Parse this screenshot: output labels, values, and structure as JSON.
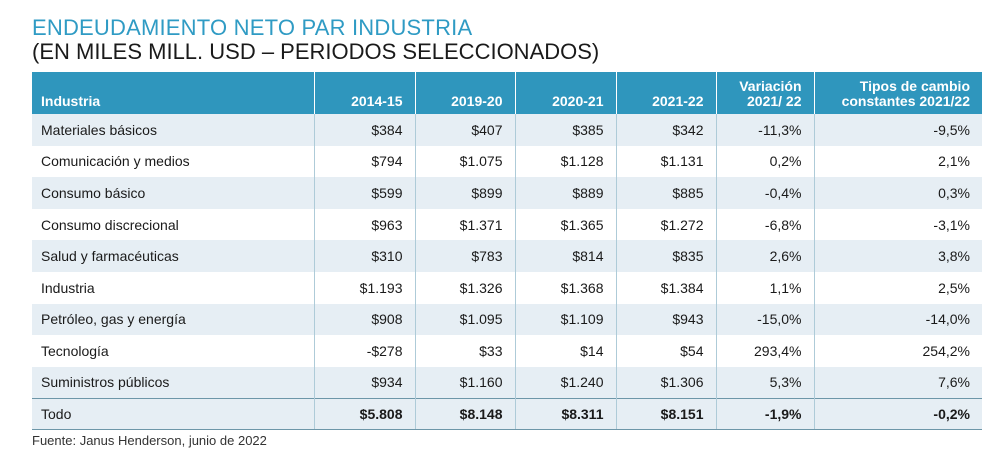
{
  "title": "ENDEUDAMIENTO NETO PAR INDUSTRIA",
  "subtitle": "(EN MILES MILL. USD – PERIODOS SELECCIONADOS)",
  "colors": {
    "title": "#2f9bc4",
    "header_bg": "#2f96bd",
    "row_shade": "#e6eef4"
  },
  "table": {
    "headers": [
      [
        "Industria"
      ],
      [
        "2014-15"
      ],
      [
        "2019-20"
      ],
      [
        "2020-21"
      ],
      [
        "2021-22"
      ],
      [
        "Variación",
        "2021/ 22"
      ],
      [
        "Tipos de cambio",
        "constantes 2021/22"
      ]
    ],
    "rows": [
      [
        "Materiales básicos",
        "$384",
        "$407",
        "$385",
        "$342",
        "-11,3%",
        "-9,5%"
      ],
      [
        "Comunicación y medios",
        "$794",
        "$1.075",
        "$1.128",
        "$1.131",
        "0,2%",
        "2,1%"
      ],
      [
        "Consumo básico",
        "$599",
        "$899",
        "$889",
        "$885",
        "-0,4%",
        "0,3%"
      ],
      [
        "Consumo discrecional",
        "$963",
        "$1.371",
        "$1.365",
        "$1.272",
        "-6,8%",
        "-3,1%"
      ],
      [
        "Salud y farmacéuticas",
        "$310",
        "$783",
        "$814",
        "$835",
        "2,6%",
        "3,8%"
      ],
      [
        "Industria",
        "$1.193",
        "$1.326",
        "$1.368",
        "$1.384",
        "1,1%",
        "2,5%"
      ],
      [
        "Petróleo, gas y energía",
        "$908",
        "$1.095",
        "$1.109",
        "$943",
        "-15,0%",
        "-14,0%"
      ],
      [
        "Tecnología",
        "-$278",
        "$33",
        "$14",
        "$54",
        "293,4%",
        "254,2%"
      ],
      [
        "Suministros públicos",
        "$934",
        "$1.160",
        "$1.240",
        "$1.306",
        "5,3%",
        "7,6%"
      ]
    ],
    "total": [
      "Todo",
      "$5.808",
      "$8.148",
      "$8.311",
      "$8.151",
      "-1,9%",
      "-0,2%"
    ]
  },
  "source": "Fuente: Janus Henderson, junio de 2022"
}
